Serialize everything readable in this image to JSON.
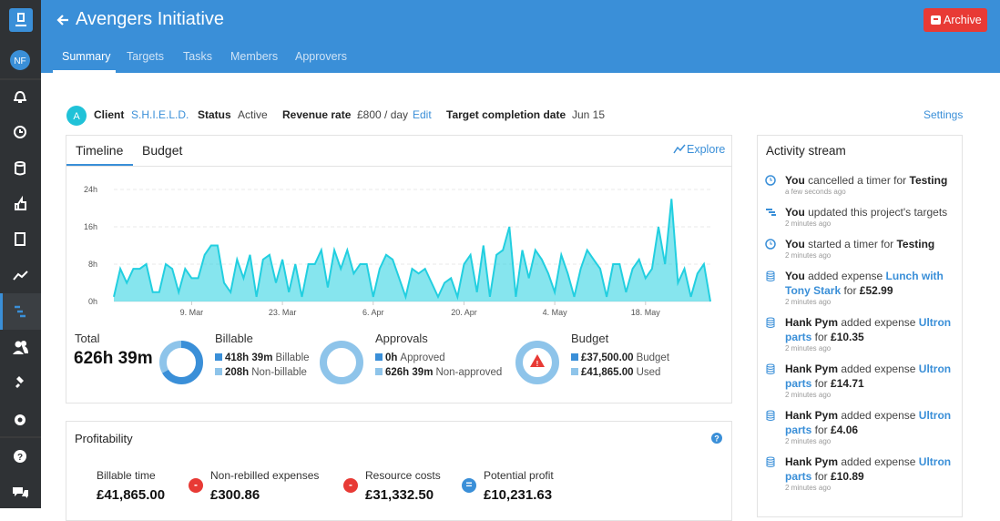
{
  "header": {
    "title": "Avengers Initiative",
    "archive": "Archive",
    "tabs": [
      "Summary",
      "Targets",
      "Tasks",
      "Members",
      "Approvers"
    ]
  },
  "sidebar": {
    "avatar": "NF"
  },
  "project": {
    "client_badge": "A",
    "client_label": "Client",
    "client": "S.H.I.E.L.D.",
    "status_label": "Status",
    "status": "Active",
    "rate_label": "Revenue rate",
    "rate": "£800 / day",
    "rate_edit": "Edit",
    "target_label": "Target completion date",
    "target": "Jun 15",
    "settings": "Settings"
  },
  "panel": {
    "tabs": [
      "Timeline",
      "Budget"
    ],
    "explore": "Explore"
  },
  "chart_data": {
    "type": "area",
    "x": [
      0,
      1,
      2,
      3,
      4,
      5,
      6,
      7,
      8,
      9,
      10,
      11,
      12,
      13,
      14,
      15,
      16,
      17,
      18,
      19,
      20,
      21,
      22,
      23,
      24,
      25,
      26,
      27,
      28,
      29,
      30,
      31,
      32,
      33,
      34,
      35,
      36,
      37,
      38,
      39,
      40,
      41,
      42,
      43,
      44,
      45,
      46,
      47,
      48,
      49,
      50,
      51,
      52,
      53,
      54,
      55,
      56,
      57,
      58,
      59,
      60,
      61,
      62,
      63,
      64,
      65,
      66,
      67,
      68,
      69,
      70,
      71,
      72,
      73,
      74,
      75,
      76,
      77,
      78,
      79,
      80,
      81,
      82,
      83,
      84,
      85,
      86,
      87,
      88,
      89,
      90,
      91,
      92
    ],
    "series": [
      {
        "color": "#22cfe0",
        "values": [
          1,
          7,
          4,
          7,
          7,
          8,
          2,
          2,
          8,
          7,
          2,
          7,
          5,
          5,
          10,
          12,
          12,
          4,
          2,
          9,
          5,
          10,
          1,
          9,
          10,
          4,
          9,
          2,
          8,
          1,
          8,
          8,
          11,
          3,
          11,
          7,
          11,
          6,
          8,
          8,
          1,
          7,
          10,
          9,
          5,
          1,
          7,
          6,
          7,
          4,
          1,
          4,
          5,
          1,
          8,
          10,
          2,
          12,
          1,
          10,
          11,
          16,
          1,
          11,
          5,
          11,
          9,
          6,
          2,
          10,
          6,
          1,
          7,
          11,
          9,
          7,
          1,
          8,
          8,
          2,
          7,
          9,
          5,
          7,
          16,
          8,
          22,
          4,
          7,
          1,
          6,
          8,
          0
        ]
      }
    ],
    "xlim": [
      0,
      92
    ],
    "ylim": [
      0,
      24
    ],
    "yticks": [
      {
        "value": 0,
        "label": "0h"
      },
      {
        "value": 8,
        "label": "8h"
      },
      {
        "value": 16,
        "label": "16h"
      },
      {
        "value": 24,
        "label": "24h"
      }
    ],
    "xticks": [
      {
        "value": 12,
        "label": "9. Mar"
      },
      {
        "value": 26,
        "label": "23. Mar"
      },
      {
        "value": 40,
        "label": "6. Apr"
      },
      {
        "value": 54,
        "label": "20. Apr"
      },
      {
        "value": 68,
        "label": "4. May"
      },
      {
        "value": 82,
        "label": "18. May"
      }
    ],
    "grid": true
  },
  "summary": {
    "total": {
      "label": "Total",
      "value": "626h 39m"
    },
    "billable": {
      "label": "Billable",
      "rows": [
        {
          "amount": "418h 39m",
          "text": "Billable"
        },
        {
          "amount": "208h",
          "text": "Non-billable"
        }
      ],
      "ring": [
        418.65,
        208
      ]
    },
    "approvals": {
      "label": "Approvals",
      "rows": [
        {
          "amount": "0h",
          "text": "Approved"
        },
        {
          "amount": "626h 39m",
          "text": "Non-approved"
        }
      ],
      "ring": [
        0,
        626.65
      ]
    },
    "budget": {
      "label": "Budget",
      "rows": [
        {
          "amount": "£37,500.00",
          "text": "Budget"
        },
        {
          "amount": "£41,865.00",
          "text": "Used"
        }
      ]
    }
  },
  "profitability": {
    "title": "Profitability",
    "items": [
      {
        "label": "Billable time",
        "value": "£41,865.00"
      },
      {
        "label": "Non-rebilled expenses",
        "value": "£300.86"
      },
      {
        "label": "Resource costs",
        "value": "£31,332.50"
      },
      {
        "label": "Potential profit",
        "value": "£10,231.63"
      }
    ],
    "operators": [
      "-",
      "-",
      "="
    ]
  },
  "activity": {
    "title": "Activity stream",
    "items": [
      {
        "icon": "clock",
        "actor": "You",
        "action": " cancelled a timer for ",
        "target": "Testing",
        "time": "a few seconds ago"
      },
      {
        "icon": "targets",
        "actor": "You",
        "action": " updated this project's targets",
        "time": "2 minutes ago"
      },
      {
        "icon": "clock",
        "actor": "You",
        "action": " started a timer for ",
        "target": "Testing",
        "time": "2 minutes ago"
      },
      {
        "icon": "expense",
        "actor": "You",
        "action": " added expense ",
        "link": "Lunch with Tony Stark",
        "joiner": " for ",
        "amount": "£52.99",
        "time": "2 minutes ago"
      },
      {
        "icon": "expense",
        "actor": "Hank Pym",
        "action": " added expense ",
        "link": "Ultron parts",
        "joiner": " for ",
        "amount": "£10.35",
        "time": "2 minutes ago"
      },
      {
        "icon": "expense",
        "actor": "Hank Pym",
        "action": " added expense ",
        "link": "Ultron parts",
        "joiner": " for ",
        "amount": "£14.71",
        "time": "2 minutes ago"
      },
      {
        "icon": "expense",
        "actor": "Hank Pym",
        "action": " added expense ",
        "link": "Ultron parts",
        "joiner": " for ",
        "amount": "£4.06",
        "time": "2 minutes ago"
      },
      {
        "icon": "expense",
        "actor": "Hank Pym",
        "action": " added expense ",
        "link": "Ultron parts",
        "joiner": " for ",
        "amount": "£10.89",
        "time": "2 minutes ago"
      }
    ]
  }
}
